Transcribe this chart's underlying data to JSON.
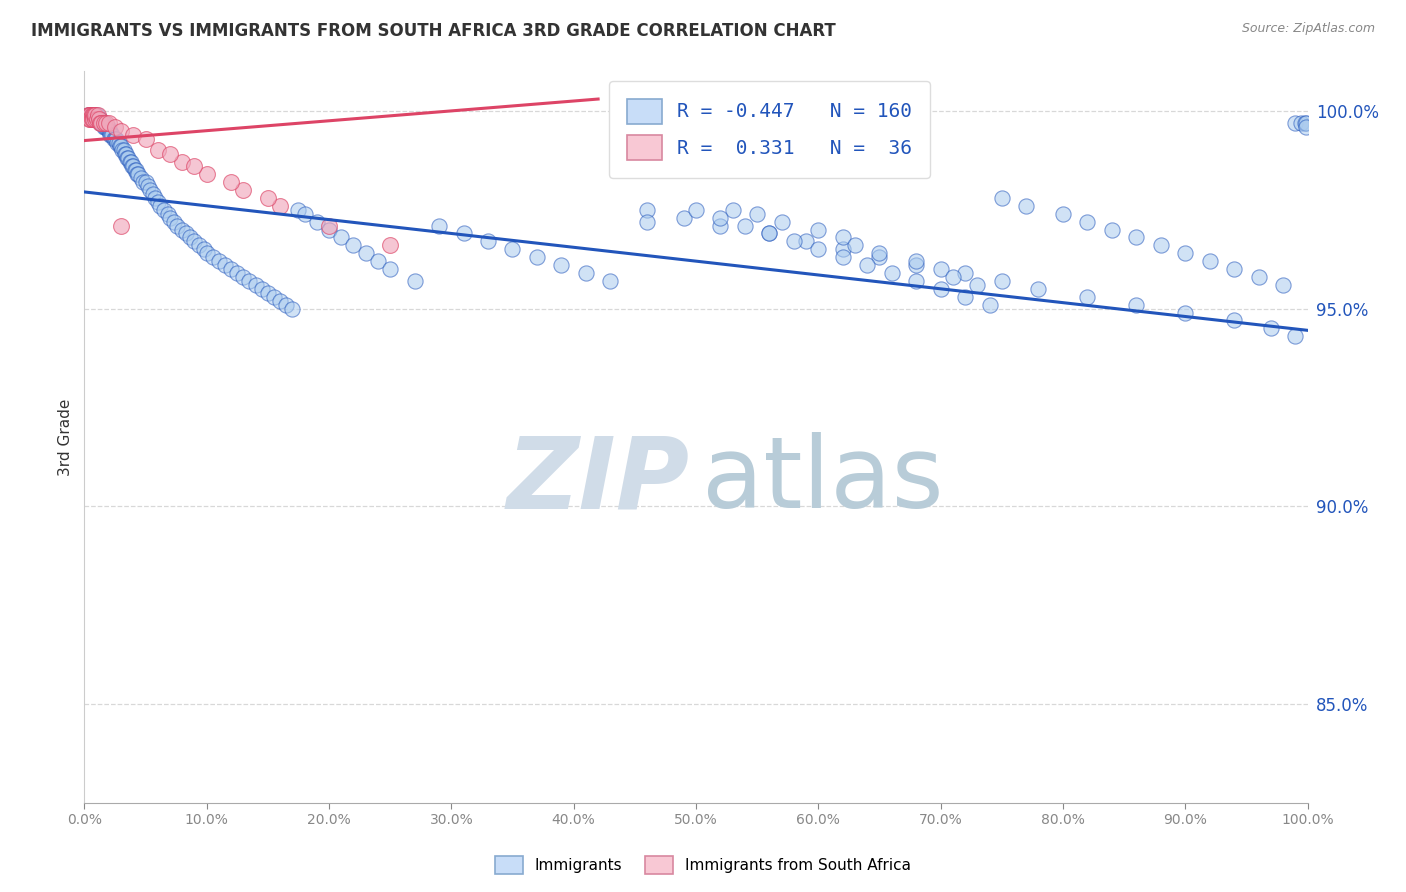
{
  "title": "IMMIGRANTS VS IMMIGRANTS FROM SOUTH AFRICA 3RD GRADE CORRELATION CHART",
  "source": "Source: ZipAtlas.com",
  "ylabel": "3rd Grade",
  "ytick_values": [
    1.0,
    0.95,
    0.9,
    0.85
  ],
  "xlim": [
    0.0,
    1.0
  ],
  "ylim": [
    0.825,
    1.01
  ],
  "blue_color": "#aacbee",
  "pink_color": "#f0a8bc",
  "blue_line_color": "#2255bb",
  "pink_line_color": "#dd4466",
  "legend_blue_fill": "#c8ddf8",
  "legend_pink_fill": "#f8c8d4",
  "watermark_zip_color": "#d0dce8",
  "watermark_atlas_color": "#b8ccd8",
  "background_color": "#ffffff",
  "grid_color": "#d8d8d8",
  "grid_style": "--",
  "blue_scatter_x": [
    0.003,
    0.004,
    0.005,
    0.006,
    0.006,
    0.007,
    0.008,
    0.008,
    0.009,
    0.01,
    0.01,
    0.011,
    0.012,
    0.013,
    0.013,
    0.014,
    0.015,
    0.016,
    0.016,
    0.017,
    0.018,
    0.019,
    0.02,
    0.021,
    0.021,
    0.022,
    0.023,
    0.024,
    0.025,
    0.026,
    0.027,
    0.028,
    0.029,
    0.03,
    0.031,
    0.032,
    0.033,
    0.034,
    0.035,
    0.036,
    0.037,
    0.038,
    0.039,
    0.04,
    0.041,
    0.042,
    0.043,
    0.044,
    0.046,
    0.048,
    0.05,
    0.052,
    0.054,
    0.056,
    0.058,
    0.06,
    0.062,
    0.065,
    0.068,
    0.07,
    0.073,
    0.076,
    0.08,
    0.083,
    0.086,
    0.09,
    0.094,
    0.098,
    0.1,
    0.105,
    0.11,
    0.115,
    0.12,
    0.125,
    0.13,
    0.135,
    0.14,
    0.145,
    0.15,
    0.155,
    0.16,
    0.165,
    0.17,
    0.175,
    0.18,
    0.19,
    0.2,
    0.21,
    0.22,
    0.23,
    0.24,
    0.25,
    0.27,
    0.29,
    0.31,
    0.33,
    0.35,
    0.37,
    0.39,
    0.41,
    0.43,
    0.46,
    0.49,
    0.52,
    0.56,
    0.59,
    0.62,
    0.65,
    0.68,
    0.72,
    0.75,
    0.78,
    0.82,
    0.86,
    0.9,
    0.94,
    0.97,
    0.99,
    0.46,
    0.53,
    0.55,
    0.57,
    0.6,
    0.62,
    0.63,
    0.65,
    0.68,
    0.7,
    0.71,
    0.73,
    0.75,
    0.77,
    0.8,
    0.82,
    0.84,
    0.86,
    0.88,
    0.9,
    0.92,
    0.94,
    0.96,
    0.98,
    0.99,
    0.995,
    0.998,
    0.999,
    0.999,
    0.5,
    0.52,
    0.54,
    0.56,
    0.58,
    0.6,
    0.62,
    0.64,
    0.66,
    0.68,
    0.7,
    0.72,
    0.74
  ],
  "blue_scatter_y": [
    0.999,
    0.999,
    0.999,
    0.999,
    0.998,
    0.999,
    0.999,
    0.998,
    0.999,
    0.999,
    0.998,
    0.998,
    0.998,
    0.998,
    0.997,
    0.997,
    0.997,
    0.997,
    0.996,
    0.996,
    0.996,
    0.996,
    0.995,
    0.995,
    0.994,
    0.994,
    0.994,
    0.993,
    0.993,
    0.993,
    0.992,
    0.992,
    0.991,
    0.991,
    0.99,
    0.99,
    0.989,
    0.989,
    0.988,
    0.988,
    0.987,
    0.987,
    0.986,
    0.986,
    0.985,
    0.985,
    0.984,
    0.984,
    0.983,
    0.982,
    0.982,
    0.981,
    0.98,
    0.979,
    0.978,
    0.977,
    0.976,
    0.975,
    0.974,
    0.973,
    0.972,
    0.971,
    0.97,
    0.969,
    0.968,
    0.967,
    0.966,
    0.965,
    0.964,
    0.963,
    0.962,
    0.961,
    0.96,
    0.959,
    0.958,
    0.957,
    0.956,
    0.955,
    0.954,
    0.953,
    0.952,
    0.951,
    0.95,
    0.975,
    0.974,
    0.972,
    0.97,
    0.968,
    0.966,
    0.964,
    0.962,
    0.96,
    0.957,
    0.971,
    0.969,
    0.967,
    0.965,
    0.963,
    0.961,
    0.959,
    0.957,
    0.975,
    0.973,
    0.971,
    0.969,
    0.967,
    0.965,
    0.963,
    0.961,
    0.959,
    0.957,
    0.955,
    0.953,
    0.951,
    0.949,
    0.947,
    0.945,
    0.943,
    0.972,
    0.975,
    0.974,
    0.972,
    0.97,
    0.968,
    0.966,
    0.964,
    0.962,
    0.96,
    0.958,
    0.956,
    0.978,
    0.976,
    0.974,
    0.972,
    0.97,
    0.968,
    0.966,
    0.964,
    0.962,
    0.96,
    0.958,
    0.956,
    0.997,
    0.997,
    0.997,
    0.997,
    0.996,
    0.975,
    0.973,
    0.971,
    0.969,
    0.967,
    0.965,
    0.963,
    0.961,
    0.959,
    0.957,
    0.955,
    0.953,
    0.951
  ],
  "pink_scatter_x": [
    0.003,
    0.004,
    0.004,
    0.005,
    0.005,
    0.006,
    0.006,
    0.007,
    0.007,
    0.008,
    0.009,
    0.009,
    0.01,
    0.011,
    0.012,
    0.013,
    0.014,
    0.016,
    0.018,
    0.02,
    0.025,
    0.03,
    0.04,
    0.06,
    0.08,
    0.1,
    0.13,
    0.16,
    0.2,
    0.25,
    0.03,
    0.05,
    0.07,
    0.09,
    0.12,
    0.15
  ],
  "pink_scatter_y": [
    0.999,
    0.999,
    0.998,
    0.999,
    0.998,
    0.999,
    0.998,
    0.999,
    0.998,
    0.999,
    0.998,
    0.999,
    0.998,
    0.999,
    0.998,
    0.997,
    0.997,
    0.997,
    0.997,
    0.997,
    0.996,
    0.995,
    0.994,
    0.99,
    0.987,
    0.984,
    0.98,
    0.976,
    0.971,
    0.966,
    0.971,
    0.993,
    0.989,
    0.986,
    0.982,
    0.978
  ],
  "blue_line_x": [
    0.0,
    1.0
  ],
  "blue_line_y": [
    0.9795,
    0.9445
  ],
  "pink_line_x": [
    0.0,
    0.42
  ],
  "pink_line_y": [
    0.9925,
    1.003
  ]
}
